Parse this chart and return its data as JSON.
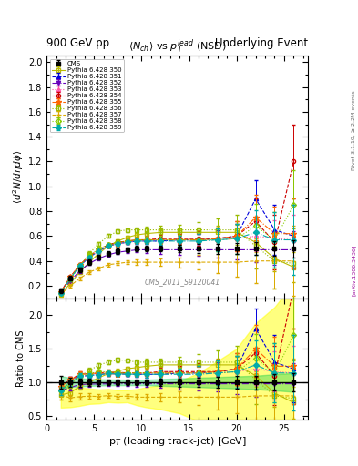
{
  "title_left": "900 GeV pp",
  "title_right": "Underlying Event",
  "plot_title": "$\\langle N_{ch}\\rangle$ vs $p_T^{lead}$ (NSD)",
  "ylabel_main": "$\\langle d^2 N/d\\eta d\\phi\\rangle$",
  "ylabel_ratio": "Ratio to CMS",
  "xlabel": "p$_T$ (leading track-jet) [GeV]",
  "watermark": "CMS_2011_S9120041",
  "right_label": "Rivet 3.1.10, ≥ 2.2M events",
  "arxiv": "[arXiv:1306.3436]",
  "ylim_main": [
    0.1,
    2.05
  ],
  "ylim_ratio": [
    0.45,
    2.25
  ],
  "xlim": [
    0,
    27.5
  ],
  "cms_x": [
    1.5,
    2.5,
    3.5,
    4.5,
    5.5,
    6.5,
    7.5,
    8.5,
    9.5,
    10.5,
    12.0,
    14.0,
    16.0,
    18.0,
    20.0,
    22.0,
    24.0,
    26.0
  ],
  "cms_y": [
    0.16,
    0.26,
    0.33,
    0.39,
    0.43,
    0.46,
    0.48,
    0.49,
    0.5,
    0.5,
    0.5,
    0.5,
    0.5,
    0.5,
    0.5,
    0.5,
    0.5,
    0.5
  ],
  "cms_yerr": [
    0.015,
    0.018,
    0.02,
    0.02,
    0.02,
    0.02,
    0.02,
    0.02,
    0.02,
    0.02,
    0.025,
    0.03,
    0.035,
    0.04,
    0.045,
    0.05,
    0.06,
    0.07
  ],
  "series": [
    {
      "label": "Pythia 6.428 350",
      "color": "#bbbb00",
      "linestyle": "-",
      "marker": "s",
      "markerfill": "none",
      "x": [
        1.5,
        2.5,
        3.5,
        4.5,
        5.5,
        6.5,
        7.5,
        8.5,
        9.5,
        10.5,
        12.0,
        14.0,
        16.0,
        18.0,
        20.0,
        22.0,
        24.0,
        26.0
      ],
      "y": [
        0.13,
        0.22,
        0.31,
        0.39,
        0.46,
        0.52,
        0.56,
        0.59,
        0.61,
        0.62,
        0.63,
        0.63,
        0.63,
        0.63,
        0.63,
        0.55,
        0.42,
        0.35
      ],
      "yerr": [
        0.01,
        0.012,
        0.015,
        0.015,
        0.015,
        0.015,
        0.015,
        0.015,
        0.015,
        0.02,
        0.025,
        0.03,
        0.04,
        0.05,
        0.06,
        0.08,
        0.1,
        0.12
      ]
    },
    {
      "label": "Pythia 6.428 351",
      "color": "#0000dd",
      "linestyle": "--",
      "marker": "^",
      "markerfill": "full",
      "x": [
        1.5,
        2.5,
        3.5,
        4.5,
        5.5,
        6.5,
        7.5,
        8.5,
        9.5,
        10.5,
        12.0,
        14.0,
        16.0,
        18.0,
        20.0,
        22.0,
        24.0,
        26.0
      ],
      "y": [
        0.15,
        0.27,
        0.36,
        0.43,
        0.48,
        0.52,
        0.54,
        0.55,
        0.56,
        0.56,
        0.56,
        0.57,
        0.57,
        0.58,
        0.6,
        0.9,
        0.65,
        0.6
      ],
      "yerr": [
        0.01,
        0.012,
        0.015,
        0.015,
        0.015,
        0.015,
        0.015,
        0.015,
        0.02,
        0.025,
        0.03,
        0.04,
        0.05,
        0.07,
        0.1,
        0.15,
        0.2,
        0.25
      ]
    },
    {
      "label": "Pythia 6.428 352",
      "color": "#6600bb",
      "linestyle": "-.",
      "marker": "v",
      "markerfill": "full",
      "x": [
        1.5,
        2.5,
        3.5,
        4.5,
        5.5,
        6.5,
        7.5,
        8.5,
        9.5,
        10.5,
        12.0,
        14.0,
        16.0,
        18.0,
        20.0,
        22.0,
        24.0,
        26.0
      ],
      "y": [
        0.14,
        0.24,
        0.32,
        0.38,
        0.42,
        0.45,
        0.47,
        0.48,
        0.49,
        0.49,
        0.49,
        0.49,
        0.49,
        0.49,
        0.49,
        0.49,
        0.49,
        0.49
      ],
      "yerr": [
        0.01,
        0.012,
        0.015,
        0.015,
        0.015,
        0.015,
        0.015,
        0.015,
        0.02,
        0.025,
        0.03,
        0.04,
        0.05,
        0.06,
        0.08,
        0.1,
        0.12,
        0.15
      ]
    },
    {
      "label": "Pythia 6.428 353",
      "color": "#ff55aa",
      "linestyle": ":",
      "marker": "^",
      "markerfill": "none",
      "x": [
        1.5,
        2.5,
        3.5,
        4.5,
        5.5,
        6.5,
        7.5,
        8.5,
        9.5,
        10.5,
        12.0,
        14.0,
        16.0,
        18.0,
        20.0,
        22.0,
        24.0,
        26.0
      ],
      "y": [
        0.15,
        0.27,
        0.36,
        0.43,
        0.48,
        0.52,
        0.54,
        0.55,
        0.56,
        0.57,
        0.57,
        0.57,
        0.57,
        0.57,
        0.58,
        0.6,
        0.58,
        0.57
      ],
      "yerr": [
        0.01,
        0.012,
        0.015,
        0.015,
        0.015,
        0.015,
        0.015,
        0.015,
        0.02,
        0.025,
        0.03,
        0.04,
        0.05,
        0.07,
        0.09,
        0.12,
        0.15,
        0.2
      ]
    },
    {
      "label": "Pythia 6.428 354",
      "color": "#cc0000",
      "linestyle": "--",
      "marker": "o",
      "markerfill": "none",
      "x": [
        1.5,
        2.5,
        3.5,
        4.5,
        5.5,
        6.5,
        7.5,
        8.5,
        9.5,
        10.5,
        12.0,
        14.0,
        16.0,
        18.0,
        20.0,
        22.0,
        24.0,
        26.0
      ],
      "y": [
        0.15,
        0.27,
        0.37,
        0.44,
        0.49,
        0.53,
        0.55,
        0.56,
        0.57,
        0.57,
        0.58,
        0.58,
        0.58,
        0.58,
        0.6,
        0.72,
        0.55,
        1.2
      ],
      "yerr": [
        0.01,
        0.012,
        0.015,
        0.015,
        0.015,
        0.015,
        0.015,
        0.015,
        0.02,
        0.025,
        0.03,
        0.04,
        0.06,
        0.09,
        0.12,
        0.18,
        0.22,
        0.3
      ]
    },
    {
      "label": "Pythia 6.428 355",
      "color": "#ff6600",
      "linestyle": "-.",
      "marker": "*",
      "markerfill": "full",
      "x": [
        1.5,
        2.5,
        3.5,
        4.5,
        5.5,
        6.5,
        7.5,
        8.5,
        9.5,
        10.5,
        12.0,
        14.0,
        16.0,
        18.0,
        20.0,
        22.0,
        24.0,
        26.0
      ],
      "y": [
        0.15,
        0.27,
        0.37,
        0.44,
        0.49,
        0.52,
        0.54,
        0.56,
        0.57,
        0.57,
        0.57,
        0.57,
        0.57,
        0.58,
        0.6,
        0.75,
        0.62,
        0.62
      ],
      "yerr": [
        0.01,
        0.012,
        0.015,
        0.015,
        0.015,
        0.015,
        0.015,
        0.015,
        0.02,
        0.025,
        0.03,
        0.04,
        0.06,
        0.09,
        0.12,
        0.18,
        0.22,
        0.28
      ]
    },
    {
      "label": "Pythia 6.428 356",
      "color": "#99bb00",
      "linestyle": ":",
      "marker": "s",
      "markerfill": "none",
      "x": [
        1.5,
        2.5,
        3.5,
        4.5,
        5.5,
        6.5,
        7.5,
        8.5,
        9.5,
        10.5,
        12.0,
        14.0,
        16.0,
        18.0,
        20.0,
        22.0,
        24.0,
        26.0
      ],
      "y": [
        0.14,
        0.25,
        0.36,
        0.46,
        0.54,
        0.6,
        0.64,
        0.65,
        0.65,
        0.65,
        0.65,
        0.65,
        0.65,
        0.65,
        0.65,
        0.52,
        0.4,
        0.38
      ],
      "yerr": [
        0.01,
        0.012,
        0.015,
        0.015,
        0.015,
        0.015,
        0.015,
        0.015,
        0.02,
        0.025,
        0.03,
        0.04,
        0.06,
        0.09,
        0.12,
        0.18,
        0.22,
        0.28
      ]
    },
    {
      "label": "Pythia 6.428 357",
      "color": "#ddaa00",
      "linestyle": "--",
      "marker": "+",
      "markerfill": "full",
      "x": [
        1.5,
        2.5,
        3.5,
        4.5,
        5.5,
        6.5,
        7.5,
        8.5,
        9.5,
        10.5,
        12.0,
        14.0,
        16.0,
        18.0,
        20.0,
        22.0,
        24.0,
        26.0
      ],
      "y": [
        0.13,
        0.2,
        0.26,
        0.31,
        0.34,
        0.37,
        0.38,
        0.39,
        0.39,
        0.39,
        0.39,
        0.39,
        0.39,
        0.39,
        0.39,
        0.4,
        0.4,
        0.4
      ],
      "yerr": [
        0.01,
        0.012,
        0.015,
        0.015,
        0.015,
        0.015,
        0.015,
        0.015,
        0.02,
        0.025,
        0.03,
        0.04,
        0.06,
        0.09,
        0.12,
        0.18,
        0.22,
        0.28
      ]
    },
    {
      "label": "Pythia 6.428 358",
      "color": "#88cc00",
      "linestyle": ":",
      "marker": "D",
      "markerfill": "none",
      "x": [
        1.5,
        2.5,
        3.5,
        4.5,
        5.5,
        6.5,
        7.5,
        8.5,
        9.5,
        10.5,
        12.0,
        14.0,
        16.0,
        18.0,
        20.0,
        22.0,
        24.0,
        26.0
      ],
      "y": [
        0.14,
        0.26,
        0.36,
        0.44,
        0.5,
        0.53,
        0.55,
        0.56,
        0.57,
        0.57,
        0.57,
        0.57,
        0.57,
        0.57,
        0.58,
        0.68,
        0.57,
        0.85
      ],
      "yerr": [
        0.01,
        0.012,
        0.015,
        0.015,
        0.015,
        0.015,
        0.015,
        0.015,
        0.02,
        0.025,
        0.03,
        0.04,
        0.06,
        0.09,
        0.12,
        0.18,
        0.22,
        0.28
      ]
    },
    {
      "label": "Pythia 6.428 359",
      "color": "#00aaaa",
      "linestyle": "-.",
      "marker": "D",
      "markerfill": "full",
      "x": [
        1.5,
        2.5,
        3.5,
        4.5,
        5.5,
        6.5,
        7.5,
        8.5,
        9.5,
        10.5,
        12.0,
        14.0,
        16.0,
        18.0,
        20.0,
        22.0,
        24.0,
        26.0
      ],
      "y": [
        0.14,
        0.26,
        0.36,
        0.43,
        0.48,
        0.52,
        0.54,
        0.55,
        0.56,
        0.56,
        0.56,
        0.56,
        0.56,
        0.57,
        0.58,
        0.63,
        0.57,
        0.57
      ],
      "yerr": [
        0.01,
        0.012,
        0.015,
        0.015,
        0.015,
        0.015,
        0.015,
        0.015,
        0.02,
        0.025,
        0.03,
        0.04,
        0.06,
        0.09,
        0.12,
        0.18,
        0.22,
        0.28
      ]
    }
  ]
}
